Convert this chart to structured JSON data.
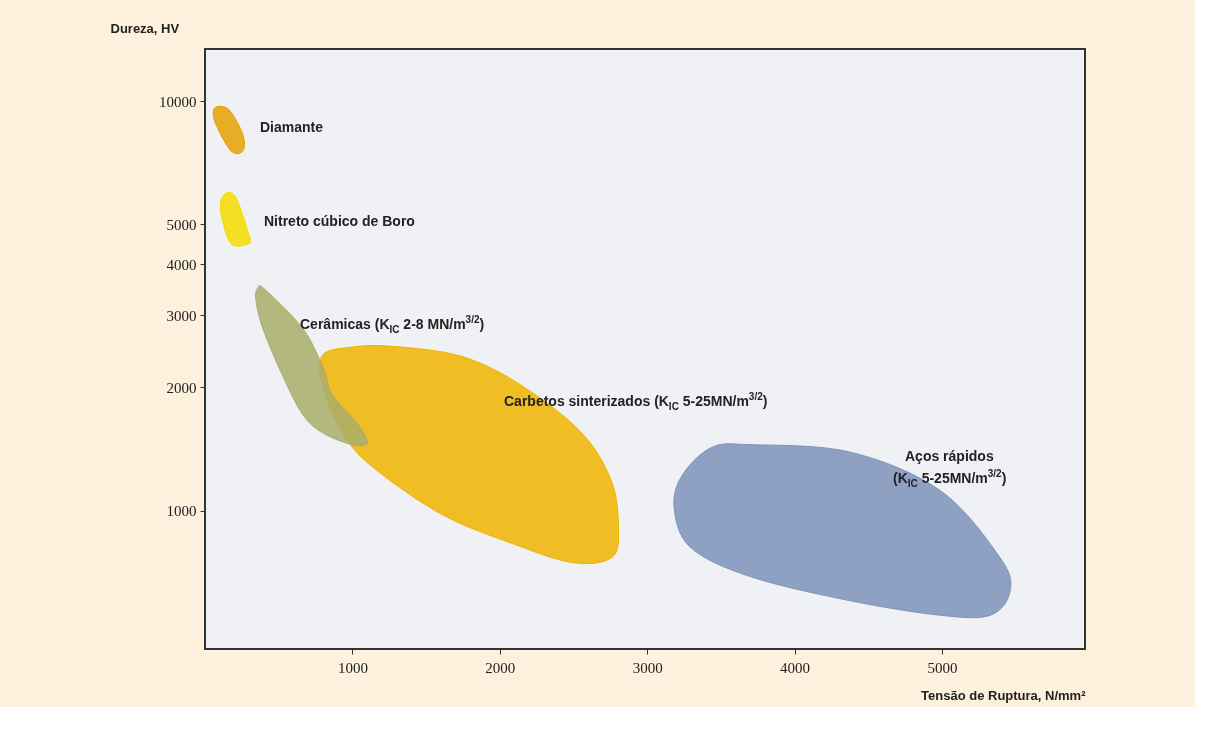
{
  "chart_data": {
    "type": "area",
    "xlabel": "Tensão de Ruptura, N/mm²",
    "ylabel": "Dureza, HV",
    "log": "y",
    "xlim": [
      0,
      5970
    ],
    "ylim": [
      460,
      13400
    ],
    "xticks": [
      1000,
      2000,
      3000,
      4000,
      5000
    ],
    "yticks": [
      1000,
      2000,
      3000,
      4000,
      5000,
      10000
    ],
    "grid": false,
    "series": [
      {
        "color": "#e8a000",
        "x": [
          68,
          162,
          257,
          257,
          176,
          68
        ],
        "values": [
          9630,
          9530,
          8280,
          7560,
          7560,
          8890
        ]
      },
      {
        "color": "#f5dc00",
        "x": [
          122,
          203,
          297,
          297,
          176,
          108
        ],
        "values": [
          5870,
          5870,
          4730,
          4490,
          4490,
          5330
        ]
      },
      {
        "color": "#f0b400",
        "x": [
          798,
          1000,
          1271,
          1744,
          2150,
          2555,
          2758,
          2805,
          2758,
          2488,
          2082,
          1609,
          1136,
          933,
          798
        ],
        "values": [
          2400,
          2510,
          2520,
          2380,
          2020,
          1550,
          1180,
          903,
          768,
          748,
          833,
          979,
          1280,
          1550,
          2020
        ]
      },
      {
        "color": "#a8ae6a",
        "x": [
          358,
          406,
          662,
          798,
          865,
          1034,
          1102,
          1000,
          798,
          662,
          527,
          392,
          345
        ],
        "values": [
          3500,
          3470,
          2790,
          2250,
          1920,
          1630,
          1465,
          1450,
          1550,
          1720,
          2135,
          2790,
          3280
        ]
      },
      {
        "color": "#7e93b8",
        "x": [
          3231,
          3434,
          3704,
          4380,
          4989,
          5394,
          5462,
          5327,
          4989,
          4380,
          3704,
          3299,
          3184
        ],
        "values": [
          1210,
          1426,
          1450,
          1390,
          1120,
          768,
          637,
          556,
          556,
          603,
          690,
          811,
          1005
        ]
      }
    ],
    "annotations": [
      "Diamante",
      "Nitreto cúbico de Boro",
      "Carbetos sinterizados (K$_{IC}$ 5-25MN/m$^{3/2}$)",
      "Cerâmicas (K$_{IC}$ 2-8 MN/m$^{3/2}$)",
      "Aços rápidos\n(K$_{IC}$ 5-25MN/m$^{3/2}$)"
    ]
  }
}
